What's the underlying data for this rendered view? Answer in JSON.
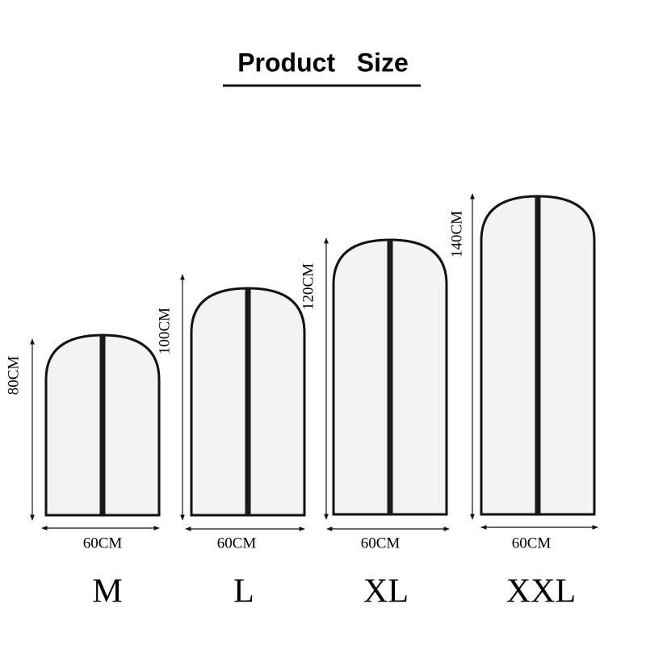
{
  "header": {
    "title": "Product   Size"
  },
  "items": [
    {
      "size": "M",
      "height": "80CM",
      "width": "60CM"
    },
    {
      "size": "L",
      "height": "100CM",
      "width": "60CM"
    },
    {
      "size": "XL",
      "height": "120CM",
      "width": "60CM"
    },
    {
      "size": "XXL",
      "height": "140CM",
      "width": "60CM"
    }
  ]
}
